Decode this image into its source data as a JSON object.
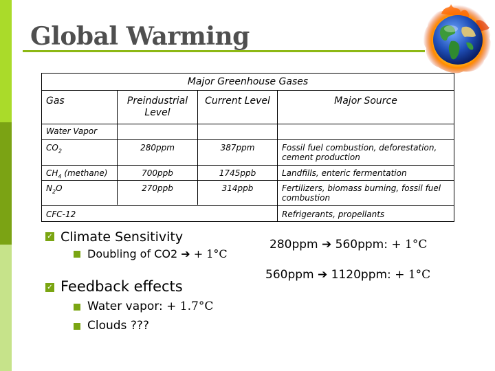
{
  "slide": {
    "title": "Global Warming",
    "colors": {
      "accent_top": "#aadb2a",
      "accent_mid": "#7ba314",
      "accent_bottom": "#c6e38a",
      "title": "#4f4f4f",
      "rule": "#8db814"
    }
  },
  "globe": {
    "icon": "burning-globe-icon"
  },
  "table": {
    "caption": "Major Greenhouse Gases",
    "headers": [
      "Gas",
      "Preindustrial Level",
      "Current Level",
      "Major Source"
    ],
    "rows": [
      {
        "gas": "Water Vapor",
        "pre": "",
        "cur": "",
        "src": ""
      },
      {
        "gas": "CO2",
        "pre": "280ppm",
        "cur": "387ppm",
        "src": "Fossil fuel combustion, deforestation, cement production"
      },
      {
        "gas": "CH4 (methane)",
        "pre": "700ppb",
        "cur": "1745ppb",
        "src": "Landfills, enteric fermentation"
      },
      {
        "gas": "N2O",
        "pre": "270ppb",
        "cur": "314ppb",
        "src": "Fertilizers, biomass burning, fossil fuel combustion"
      },
      {
        "gas": "CFC-12",
        "pre": "",
        "cur": "",
        "src": "Refrigerants, propellants"
      }
    ]
  },
  "bullets": {
    "climate_sensitivity": "Climate Sensitivity",
    "doubling": {
      "text": "Doubling of CO2",
      "arrow": "➔",
      "value": "+ 1°C"
    },
    "feedback_effects": "Feedback effects",
    "water_vapor": {
      "text": "Water vapor: ",
      "value": "+ 1.7°C"
    },
    "clouds": "Clouds ???"
  },
  "side_notes": {
    "line1": {
      "from": "280ppm",
      "arrow": "➔",
      "to": "560ppm: ",
      "value": "+ 1°C"
    },
    "line2": {
      "from": "560ppm",
      "arrow": "➔",
      "to": "1120ppm: ",
      "value": "+ 1°C"
    }
  }
}
